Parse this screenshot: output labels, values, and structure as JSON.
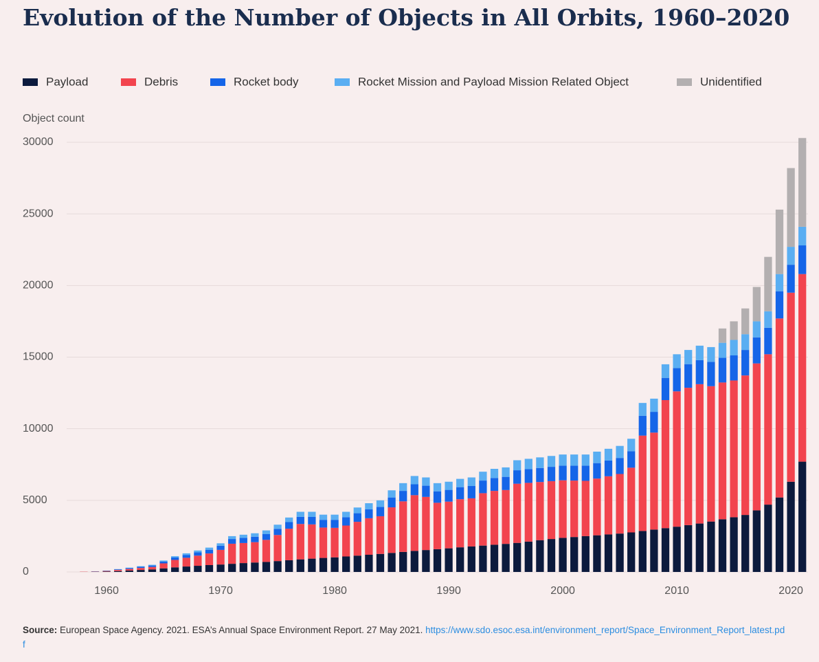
{
  "chart_data": {
    "type": "stacked_bar",
    "title": "Evolution of the Number of Objects in All Orbits, 1960–2020",
    "y_label": "Object count",
    "x": [
      1957,
      1958,
      1959,
      1960,
      1961,
      1962,
      1963,
      1964,
      1965,
      1966,
      1967,
      1968,
      1969,
      1970,
      1971,
      1972,
      1973,
      1974,
      1975,
      1976,
      1977,
      1978,
      1979,
      1980,
      1981,
      1982,
      1983,
      1984,
      1985,
      1986,
      1987,
      1988,
      1989,
      1990,
      1991,
      1992,
      1993,
      1994,
      1995,
      1996,
      1997,
      1998,
      1999,
      2000,
      2001,
      2002,
      2003,
      2004,
      2005,
      2006,
      2007,
      2008,
      2009,
      2010,
      2011,
      2012,
      2013,
      2014,
      2015,
      2016,
      2017,
      2018,
      2019,
      2020,
      2021
    ],
    "xlim": [
      1956.5,
      2021.5
    ],
    "xticks": [
      1960,
      1970,
      1980,
      1990,
      2000,
      2010,
      2020
    ],
    "ylim": [
      0,
      30000
    ],
    "yticks": [
      0,
      5000,
      10000,
      15000,
      20000,
      25000,
      30000
    ],
    "grid": true,
    "legend": "top",
    "series": [
      {
        "name": "Payload",
        "color": "#0c1a3d",
        "values": [
          0,
          5,
          15,
          30,
          60,
          100,
          140,
          180,
          250,
          320,
          380,
          430,
          480,
          520,
          570,
          620,
          660,
          700,
          760,
          820,
          880,
          930,
          980,
          1020,
          1080,
          1140,
          1200,
          1260,
          1330,
          1400,
          1470,
          1530,
          1590,
          1650,
          1720,
          1780,
          1840,
          1900,
          1960,
          2030,
          2120,
          2220,
          2300,
          2380,
          2440,
          2500,
          2560,
          2620,
          2680,
          2760,
          2860,
          2960,
          3060,
          3160,
          3270,
          3380,
          3520,
          3680,
          3820,
          3980,
          4300,
          4700,
          5200,
          6300,
          7700
        ]
      },
      {
        "name": "Debris",
        "color": "#f2444e",
        "values": [
          0,
          15,
          20,
          40,
          80,
          110,
          140,
          170,
          350,
          520,
          610,
          710,
          810,
          1020,
          1400,
          1400,
          1420,
          1540,
          1820,
          2200,
          2470,
          2390,
          2120,
          2060,
          2160,
          2360,
          2550,
          2630,
          3180,
          3530,
          3890,
          3710,
          3240,
          3260,
          3360,
          3360,
          3660,
          3760,
          3760,
          4130,
          4100,
          4060,
          4040,
          4020,
          3940,
          3860,
          3960,
          4060,
          4160,
          4520,
          6660,
          6770,
          8940,
          9450,
          9590,
          9730,
          9450,
          9550,
          9550,
          9740,
          10260,
          10500,
          12500,
          13200,
          13100
        ]
      },
      {
        "name": "Rocket body",
        "color": "#1565e8",
        "values": [
          0,
          0,
          10,
          20,
          40,
          60,
          80,
          100,
          130,
          170,
          200,
          230,
          260,
          290,
          330,
          360,
          380,
          400,
          430,
          460,
          500,
          520,
          540,
          560,
          580,
          600,
          620,
          650,
          690,
          730,
          760,
          780,
          800,
          820,
          840,
          860,
          880,
          900,
          920,
          940,
          960,
          980,
          1000,
          1020,
          1040,
          1060,
          1080,
          1100,
          1120,
          1150,
          1380,
          1450,
          1550,
          1620,
          1650,
          1680,
          1700,
          1720,
          1750,
          1780,
          1820,
          1850,
          1900,
          1950,
          2000
        ]
      },
      {
        "name": "Rocket Mission and Payload Mission Related Object",
        "color": "#5aaef2",
        "values": [
          0,
          0,
          5,
          10,
          20,
          30,
          40,
          50,
          70,
          90,
          110,
          130,
          150,
          170,
          200,
          220,
          240,
          260,
          290,
          320,
          350,
          360,
          360,
          360,
          380,
          400,
          430,
          460,
          500,
          540,
          580,
          580,
          570,
          570,
          580,
          600,
          620,
          640,
          660,
          700,
          720,
          740,
          760,
          780,
          780,
          780,
          800,
          820,
          840,
          870,
          900,
          920,
          950,
          970,
          990,
          1010,
          1030,
          1050,
          1080,
          1100,
          1120,
          1150,
          1200,
          1250,
          1300
        ]
      },
      {
        "name": "Unidentified",
        "color": "#b3afb0",
        "values": [
          0,
          0,
          0,
          0,
          0,
          0,
          0,
          0,
          0,
          0,
          0,
          0,
          0,
          0,
          0,
          0,
          0,
          0,
          0,
          0,
          0,
          0,
          0,
          0,
          0,
          0,
          0,
          0,
          0,
          0,
          0,
          0,
          0,
          0,
          0,
          0,
          0,
          0,
          0,
          0,
          0,
          0,
          0,
          0,
          0,
          0,
          0,
          0,
          0,
          0,
          0,
          0,
          0,
          0,
          0,
          0,
          0,
          1000,
          1300,
          1800,
          2400,
          3800,
          4500,
          5500,
          6200
        ]
      }
    ]
  },
  "source": {
    "label": "Source:",
    "text": "European Space Agency. 2021. ESA’s Annual Space Environment Report. 27 May 2021.",
    "url": "https://www.sdo.esoc.esa.int/environment_report/Space_Environment_Report_latest.pdf"
  }
}
